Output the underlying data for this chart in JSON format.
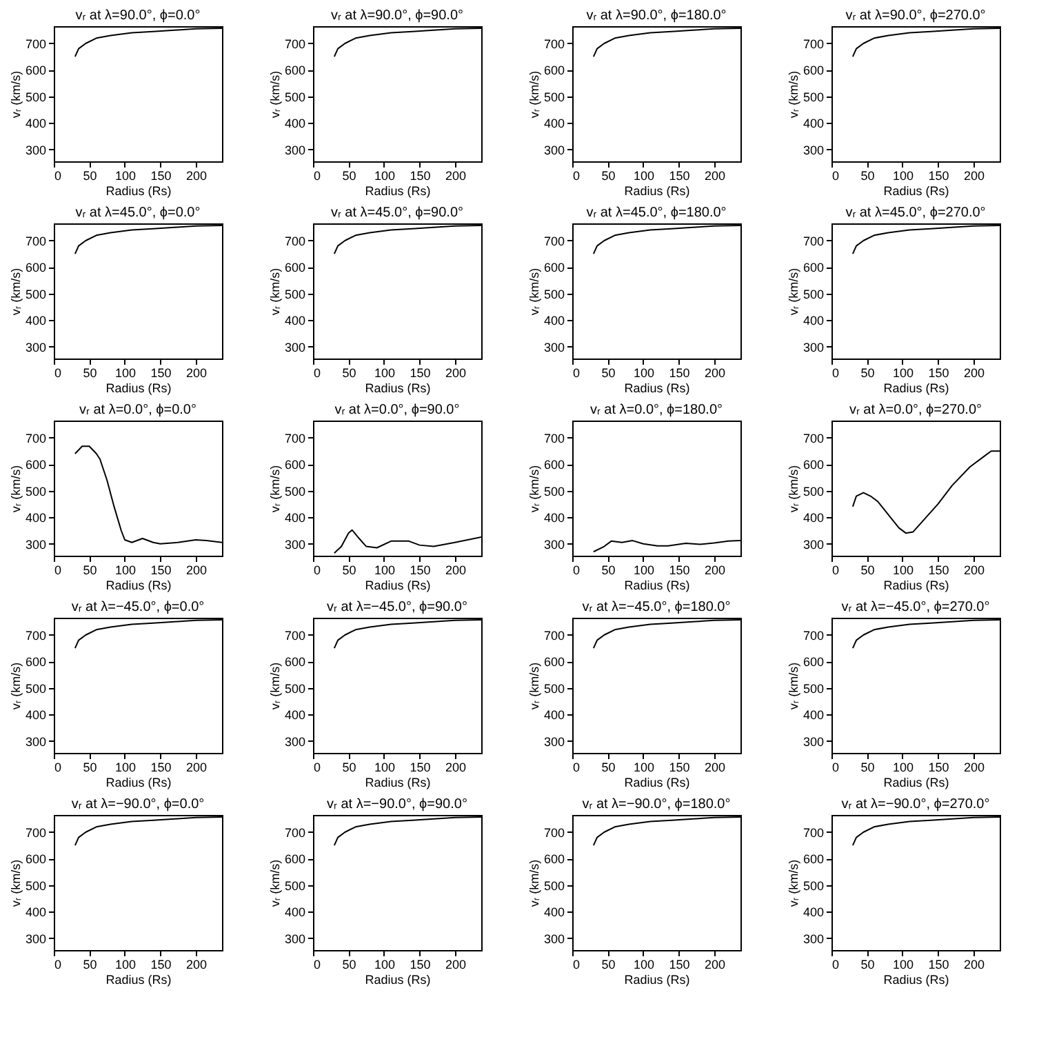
{
  "chart_data": [
    {
      "type": "line",
      "title": "vᵣ at λ=90.0°, ϕ=0.0°",
      "xlabel": "Radius (Rs)",
      "ylabel": "vᵣ (km/s)",
      "x": [
        30,
        35,
        45,
        60,
        80,
        110,
        140,
        170,
        200,
        237
      ],
      "values": [
        650,
        680,
        700,
        720,
        730,
        740,
        745,
        750,
        755,
        757
      ],
      "xlim": [
        0,
        237
      ],
      "ylim": [
        255,
        765
      ],
      "xticks": [
        0,
        50,
        100,
        150,
        200
      ],
      "yticks": [
        300,
        400,
        500,
        600,
        700
      ]
    },
    {
      "type": "line",
      "title": "vᵣ at λ=90.0°, ϕ=90.0°",
      "xlabel": "Radius (Rs)",
      "ylabel": "vᵣ (km/s)",
      "x": [
        30,
        35,
        45,
        60,
        80,
        110,
        140,
        170,
        200,
        237
      ],
      "values": [
        650,
        680,
        700,
        720,
        730,
        740,
        745,
        750,
        755,
        757
      ],
      "xlim": [
        0,
        237
      ],
      "ylim": [
        255,
        765
      ],
      "xticks": [
        0,
        50,
        100,
        150,
        200
      ],
      "yticks": [
        300,
        400,
        500,
        600,
        700
      ]
    },
    {
      "type": "line",
      "title": "vᵣ at λ=90.0°, ϕ=180.0°",
      "xlabel": "Radius (Rs)",
      "ylabel": "vᵣ (km/s)",
      "x": [
        30,
        35,
        45,
        60,
        80,
        110,
        140,
        170,
        200,
        237
      ],
      "values": [
        650,
        680,
        700,
        720,
        730,
        740,
        745,
        750,
        755,
        757
      ],
      "xlim": [
        0,
        237
      ],
      "ylim": [
        255,
        765
      ],
      "xticks": [
        0,
        50,
        100,
        150,
        200
      ],
      "yticks": [
        300,
        400,
        500,
        600,
        700
      ]
    },
    {
      "type": "line",
      "title": "vᵣ at λ=90.0°, ϕ=270.0°",
      "xlabel": "Radius (Rs)",
      "ylabel": "vᵣ (km/s)",
      "x": [
        30,
        35,
        45,
        60,
        80,
        110,
        140,
        170,
        200,
        237
      ],
      "values": [
        650,
        680,
        700,
        720,
        730,
        740,
        745,
        750,
        755,
        757
      ],
      "xlim": [
        0,
        237
      ],
      "ylim": [
        255,
        765
      ],
      "xticks": [
        0,
        50,
        100,
        150,
        200
      ],
      "yticks": [
        300,
        400,
        500,
        600,
        700
      ]
    },
    {
      "type": "line",
      "title": "vᵣ at λ=45.0°, ϕ=0.0°",
      "xlabel": "Radius (Rs)",
      "ylabel": "vᵣ (km/s)",
      "x": [
        30,
        35,
        45,
        60,
        80,
        110,
        140,
        170,
        200,
        237
      ],
      "values": [
        650,
        680,
        700,
        720,
        730,
        740,
        745,
        750,
        755,
        757
      ],
      "xlim": [
        0,
        237
      ],
      "ylim": [
        255,
        765
      ],
      "xticks": [
        0,
        50,
        100,
        150,
        200
      ],
      "yticks": [
        300,
        400,
        500,
        600,
        700
      ]
    },
    {
      "type": "line",
      "title": "vᵣ at λ=45.0°, ϕ=90.0°",
      "xlabel": "Radius (Rs)",
      "ylabel": "vᵣ (km/s)",
      "x": [
        30,
        35,
        45,
        60,
        80,
        110,
        140,
        170,
        200,
        237
      ],
      "values": [
        650,
        680,
        700,
        720,
        730,
        740,
        745,
        750,
        755,
        757
      ],
      "xlim": [
        0,
        237
      ],
      "ylim": [
        255,
        765
      ],
      "xticks": [
        0,
        50,
        100,
        150,
        200
      ],
      "yticks": [
        300,
        400,
        500,
        600,
        700
      ]
    },
    {
      "type": "line",
      "title": "vᵣ at λ=45.0°, ϕ=180.0°",
      "xlabel": "Radius (Rs)",
      "ylabel": "vᵣ (km/s)",
      "x": [
        30,
        35,
        45,
        60,
        80,
        110,
        140,
        170,
        200,
        237
      ],
      "values": [
        650,
        680,
        700,
        720,
        730,
        740,
        745,
        750,
        755,
        757
      ],
      "xlim": [
        0,
        237
      ],
      "ylim": [
        255,
        765
      ],
      "xticks": [
        0,
        50,
        100,
        150,
        200
      ],
      "yticks": [
        300,
        400,
        500,
        600,
        700
      ]
    },
    {
      "type": "line",
      "title": "vᵣ at λ=45.0°, ϕ=270.0°",
      "xlabel": "Radius (Rs)",
      "ylabel": "vᵣ (km/s)",
      "x": [
        30,
        35,
        45,
        60,
        80,
        110,
        140,
        170,
        200,
        237
      ],
      "values": [
        650,
        680,
        700,
        720,
        730,
        740,
        745,
        750,
        755,
        757
      ],
      "xlim": [
        0,
        237
      ],
      "ylim": [
        255,
        765
      ],
      "xticks": [
        0,
        50,
        100,
        150,
        200
      ],
      "yticks": [
        300,
        400,
        500,
        600,
        700
      ]
    },
    {
      "type": "line",
      "title": "vᵣ at λ=0.0°, ϕ=0.0°",
      "xlabel": "Radius (Rs)",
      "ylabel": "vᵣ (km/s)",
      "x": [
        30,
        40,
        50,
        60,
        65,
        75,
        85,
        95,
        100,
        110,
        125,
        140,
        150,
        175,
        200,
        215,
        237
      ],
      "values": [
        640,
        668,
        668,
        640,
        620,
        540,
        440,
        350,
        315,
        305,
        320,
        305,
        300,
        305,
        315,
        312,
        305
      ],
      "xlim": [
        0,
        237
      ],
      "ylim": [
        255,
        765
      ],
      "xticks": [
        0,
        50,
        100,
        150,
        200
      ],
      "yticks": [
        300,
        400,
        500,
        600,
        700
      ]
    },
    {
      "type": "line",
      "title": "vᵣ at λ=0.0°, ϕ=90.0°",
      "xlabel": "Radius (Rs)",
      "ylabel": "vᵣ (km/s)",
      "x": [
        30,
        40,
        50,
        55,
        65,
        75,
        90,
        110,
        135,
        150,
        170,
        200,
        237
      ],
      "values": [
        265,
        290,
        340,
        352,
        320,
        290,
        285,
        310,
        310,
        295,
        290,
        305,
        325
      ],
      "xlim": [
        0,
        237
      ],
      "ylim": [
        255,
        765
      ],
      "xticks": [
        0,
        50,
        100,
        150,
        200
      ],
      "yticks": [
        300,
        400,
        500,
        600,
        700
      ]
    },
    {
      "type": "line",
      "title": "vᵣ at λ=0.0°, ϕ=180.0°",
      "xlabel": "Radius (Rs)",
      "ylabel": "vᵣ (km/s)",
      "x": [
        30,
        45,
        55,
        70,
        85,
        100,
        120,
        135,
        160,
        180,
        200,
        220,
        237
      ],
      "values": [
        270,
        290,
        310,
        305,
        312,
        300,
        292,
        292,
        302,
        298,
        303,
        310,
        312
      ],
      "xlim": [
        0,
        237
      ],
      "ylim": [
        255,
        765
      ],
      "xticks": [
        0,
        50,
        100,
        150,
        200
      ],
      "yticks": [
        300,
        400,
        500,
        600,
        700
      ]
    },
    {
      "type": "line",
      "title": "vᵣ at λ=0.0°, ϕ=270.0°",
      "xlabel": "Radius (Rs)",
      "ylabel": "vᵣ (km/s)",
      "x": [
        30,
        35,
        45,
        55,
        65,
        80,
        95,
        105,
        115,
        130,
        150,
        170,
        195,
        215,
        225,
        237
      ],
      "values": [
        440,
        480,
        493,
        480,
        460,
        410,
        360,
        340,
        345,
        390,
        450,
        520,
        590,
        630,
        650,
        650
      ],
      "xlim": [
        0,
        237
      ],
      "ylim": [
        255,
        765
      ],
      "xticks": [
        0,
        50,
        100,
        150,
        200
      ],
      "yticks": [
        300,
        400,
        500,
        600,
        700
      ]
    },
    {
      "type": "line",
      "title": "vᵣ at λ=−45.0°, ϕ=0.0°",
      "xlabel": "Radius (Rs)",
      "ylabel": "vᵣ (km/s)",
      "x": [
        30,
        35,
        45,
        60,
        80,
        110,
        140,
        170,
        200,
        237
      ],
      "values": [
        650,
        680,
        700,
        720,
        730,
        740,
        745,
        750,
        755,
        757
      ],
      "xlim": [
        0,
        237
      ],
      "ylim": [
        255,
        765
      ],
      "xticks": [
        0,
        50,
        100,
        150,
        200
      ],
      "yticks": [
        300,
        400,
        500,
        600,
        700
      ]
    },
    {
      "type": "line",
      "title": "vᵣ at λ=−45.0°, ϕ=90.0°",
      "xlabel": "Radius (Rs)",
      "ylabel": "vᵣ (km/s)",
      "x": [
        30,
        35,
        45,
        60,
        80,
        110,
        140,
        170,
        200,
        237
      ],
      "values": [
        650,
        680,
        700,
        720,
        730,
        740,
        745,
        750,
        755,
        757
      ],
      "xlim": [
        0,
        237
      ],
      "ylim": [
        255,
        765
      ],
      "xticks": [
        0,
        50,
        100,
        150,
        200
      ],
      "yticks": [
        300,
        400,
        500,
        600,
        700
      ]
    },
    {
      "type": "line",
      "title": "vᵣ at λ=−45.0°, ϕ=180.0°",
      "xlabel": "Radius (Rs)",
      "ylabel": "vᵣ (km/s)",
      "x": [
        30,
        35,
        45,
        60,
        80,
        110,
        140,
        170,
        200,
        237
      ],
      "values": [
        650,
        680,
        700,
        720,
        730,
        740,
        745,
        750,
        755,
        757
      ],
      "xlim": [
        0,
        237
      ],
      "ylim": [
        255,
        765
      ],
      "xticks": [
        0,
        50,
        100,
        150,
        200
      ],
      "yticks": [
        300,
        400,
        500,
        600,
        700
      ]
    },
    {
      "type": "line",
      "title": "vᵣ at λ=−45.0°, ϕ=270.0°",
      "xlabel": "Radius (Rs)",
      "ylabel": "vᵣ (km/s)",
      "x": [
        30,
        35,
        45,
        60,
        80,
        110,
        140,
        170,
        200,
        237
      ],
      "values": [
        650,
        680,
        700,
        720,
        730,
        740,
        745,
        750,
        755,
        757
      ],
      "xlim": [
        0,
        237
      ],
      "ylim": [
        255,
        765
      ],
      "xticks": [
        0,
        50,
        100,
        150,
        200
      ],
      "yticks": [
        300,
        400,
        500,
        600,
        700
      ]
    },
    {
      "type": "line",
      "title": "vᵣ at λ=−90.0°, ϕ=0.0°",
      "xlabel": "Radius (Rs)",
      "ylabel": "vᵣ (km/s)",
      "x": [
        30,
        35,
        45,
        60,
        80,
        110,
        140,
        170,
        200,
        237
      ],
      "values": [
        650,
        680,
        700,
        720,
        730,
        740,
        745,
        750,
        755,
        757
      ],
      "xlim": [
        0,
        237
      ],
      "ylim": [
        255,
        765
      ],
      "xticks": [
        0,
        50,
        100,
        150,
        200
      ],
      "yticks": [
        300,
        400,
        500,
        600,
        700
      ]
    },
    {
      "type": "line",
      "title": "vᵣ at λ=−90.0°, ϕ=90.0°",
      "xlabel": "Radius (Rs)",
      "ylabel": "vᵣ (km/s)",
      "x": [
        30,
        35,
        45,
        60,
        80,
        110,
        140,
        170,
        200,
        237
      ],
      "values": [
        650,
        680,
        700,
        720,
        730,
        740,
        745,
        750,
        755,
        757
      ],
      "xlim": [
        0,
        237
      ],
      "ylim": [
        255,
        765
      ],
      "xticks": [
        0,
        50,
        100,
        150,
        200
      ],
      "yticks": [
        300,
        400,
        500,
        600,
        700
      ]
    },
    {
      "type": "line",
      "title": "vᵣ at λ=−90.0°, ϕ=180.0°",
      "xlabel": "Radius (Rs)",
      "ylabel": "vᵣ (km/s)",
      "x": [
        30,
        35,
        45,
        60,
        80,
        110,
        140,
        170,
        200,
        237
      ],
      "values": [
        650,
        680,
        700,
        720,
        730,
        740,
        745,
        750,
        755,
        757
      ],
      "xlim": [
        0,
        237
      ],
      "ylim": [
        255,
        765
      ],
      "xticks": [
        0,
        50,
        100,
        150,
        200
      ],
      "yticks": [
        300,
        400,
        500,
        600,
        700
      ]
    },
    {
      "type": "line",
      "title": "vᵣ at λ=−90.0°, ϕ=270.0°",
      "xlabel": "Radius (Rs)",
      "ylabel": "vᵣ (km/s)",
      "x": [
        30,
        35,
        45,
        60,
        80,
        110,
        140,
        170,
        200,
        237
      ],
      "values": [
        650,
        680,
        700,
        720,
        730,
        740,
        745,
        750,
        755,
        757
      ],
      "xlim": [
        0,
        237
      ],
      "ylim": [
        255,
        765
      ],
      "xticks": [
        0,
        50,
        100,
        150,
        200
      ],
      "yticks": [
        300,
        400,
        500,
        600,
        700
      ]
    }
  ]
}
